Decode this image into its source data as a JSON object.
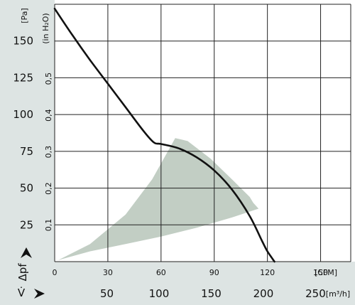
{
  "chart_data": {
    "type": "line",
    "y_left": {
      "unit": "[Pa]",
      "ticks": [
        "150",
        "125",
        "100",
        "75",
        "50",
        "25"
      ],
      "tick_values": [
        150,
        125,
        100,
        75,
        50,
        25
      ],
      "range": [
        0,
        175
      ],
      "symbol": "Δpf"
    },
    "y_inner": {
      "unit": "(in H₂O)",
      "ticks": [
        "0,5",
        "0,4",
        "0,3",
        "0,2",
        "0,1"
      ],
      "tick_values": [
        0.5,
        0.4,
        0.3,
        0.2,
        0.1
      ]
    },
    "x_cfm": {
      "unit": "[CFM]",
      "ticks": [
        "0",
        "30",
        "60",
        "90",
        "120",
        "150"
      ],
      "tick_values": [
        0,
        30,
        60,
        90,
        120,
        150
      ],
      "range": [
        0,
        167
      ]
    },
    "x_m3h": {
      "unit": "[m³/h]",
      "ticks": [
        "50",
        "100",
        "150",
        "200",
        "250"
      ],
      "tick_values": [
        50,
        100,
        150,
        200,
        250
      ],
      "symbol": "V̇"
    },
    "grid": true,
    "series": [
      {
        "x": [
          0,
          10,
          20,
          30,
          40,
          50,
          56,
          60,
          70,
          80,
          90,
          100,
          110,
          117,
          120,
          124
        ],
        "y": [
          172,
          154,
          137,
          121,
          105,
          89,
          81,
          80,
          77,
          71,
          62,
          49,
          31,
          14,
          7,
          0
        ]
      }
    ],
    "operating_region": {
      "x": [
        2,
        20,
        40,
        55,
        68,
        75,
        88,
        100,
        110,
        112,
        115,
        100,
        80,
        60,
        40,
        20,
        2
      ],
      "y": [
        1,
        12,
        32,
        56,
        84,
        82,
        70,
        56,
        44,
        40,
        36,
        30,
        23,
        17,
        12,
        7,
        1
      ]
    },
    "colors": {
      "curve": "#111111",
      "region": "#c2cec4",
      "axis_panel": "#dde4e3",
      "grid": "#222222"
    }
  }
}
